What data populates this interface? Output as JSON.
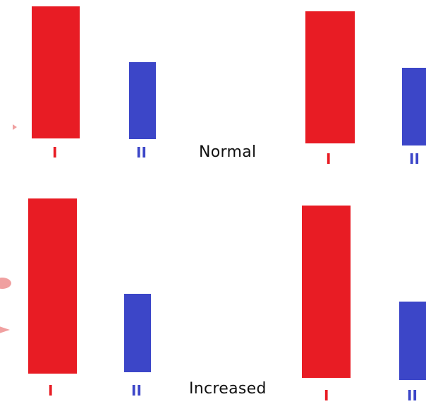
{
  "colors": {
    "red": "#e81c24",
    "blue": "#3c46c8",
    "pink": "#f0a0a0",
    "text": "#111111"
  },
  "bar_labels": {
    "first": "I",
    "second": "II"
  },
  "panels": [
    {
      "condition": "Normal",
      "groups": [
        {
          "bars": [
            "I",
            "II"
          ]
        },
        {
          "bars": [
            "I",
            "II"
          ]
        }
      ]
    },
    {
      "condition": "Increased",
      "groups": [
        {
          "bars": [
            "I",
            "II"
          ]
        },
        {
          "bars": [
            "I",
            "II"
          ]
        }
      ]
    }
  ]
}
